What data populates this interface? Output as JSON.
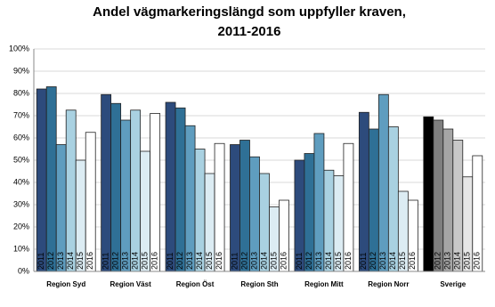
{
  "chart_data": {
    "type": "bar",
    "title": "Andel vägmarkeringslängd som uppfyller kraven,",
    "subtitle": "2011-2016",
    "categories": [
      "Region Syd",
      "Region Väst",
      "Region Öst",
      "Region Sth",
      "Region Mitt",
      "Region Norr",
      "Sverige"
    ],
    "series": [
      {
        "name": "2011",
        "colors": [
          "#2d4b7c",
          "#2d4b7c",
          "#2d4b7c",
          "#2d4b7c",
          "#2d4b7c",
          "#2d4b7c",
          "#000000"
        ],
        "values": [
          82,
          79.5,
          76,
          57,
          50,
          71.5,
          69.5
        ]
      },
      {
        "name": "2012",
        "colors": [
          "#2f7096",
          "#2f7096",
          "#2f7096",
          "#2f7096",
          "#2f7096",
          "#2f7096",
          "#7f7f7f"
        ],
        "values": [
          83,
          75.5,
          73.5,
          59,
          53,
          64,
          68
        ]
      },
      {
        "name": "2013",
        "colors": [
          "#5f9dbf",
          "#5f9dbf",
          "#5f9dbf",
          "#5f9dbf",
          "#5f9dbf",
          "#5f9dbf",
          "#a5a5a5"
        ],
        "values": [
          57,
          68,
          65.5,
          51.5,
          62,
          79.5,
          64
        ]
      },
      {
        "name": "2014",
        "colors": [
          "#a9d1e1",
          "#a9d1e1",
          "#a9d1e1",
          "#a9d1e1",
          "#a9d1e1",
          "#a9d1e1",
          "#c8c8c8"
        ],
        "values": [
          72.5,
          72.5,
          55,
          44,
          45.5,
          65,
          59
        ]
      },
      {
        "name": "2015",
        "colors": [
          "#dcecf3",
          "#dcecf3",
          "#dcecf3",
          "#dcecf3",
          "#dcecf3",
          "#dcecf3",
          "#e6e6e6"
        ],
        "values": [
          50,
          54,
          44,
          29,
          43,
          36,
          42.5
        ]
      },
      {
        "name": "2016",
        "colors": [
          "#ffffff",
          "#ffffff",
          "#ffffff",
          "#ffffff",
          "#ffffff",
          "#ffffff",
          "#ffffff"
        ],
        "values": [
          62.5,
          71,
          57.5,
          32,
          57.5,
          32,
          52
        ]
      }
    ],
    "ylim": [
      0,
      100
    ],
    "yticks": [
      {
        "value": 0,
        "label": "0%"
      },
      {
        "value": 10,
        "label": "10%"
      },
      {
        "value": 20,
        "label": "20%"
      },
      {
        "value": 30,
        "label": "30%"
      },
      {
        "value": 40,
        "label": "40%"
      },
      {
        "value": 50,
        "label": "50%"
      },
      {
        "value": 60,
        "label": "60%"
      },
      {
        "value": 70,
        "label": "70%"
      },
      {
        "value": 80,
        "label": "80%"
      },
      {
        "value": 90,
        "label": "90%"
      },
      {
        "value": 100,
        "label": "100%"
      }
    ],
    "grid": true
  }
}
